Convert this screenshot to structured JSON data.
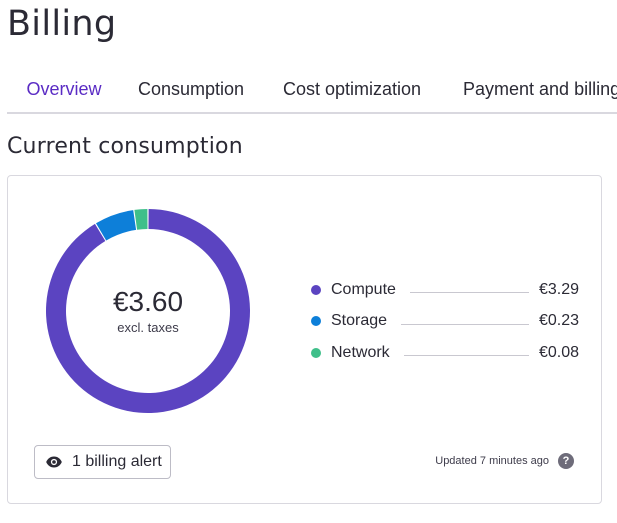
{
  "page": {
    "title": "Billing"
  },
  "tabs": [
    {
      "label": "Overview",
      "active": true
    },
    {
      "label": "Consumption",
      "active": false
    },
    {
      "label": "Cost optimization",
      "active": false
    },
    {
      "label": "Payment and billing",
      "active": false
    }
  ],
  "section": {
    "title": "Current consumption"
  },
  "summary": {
    "total": "€3.60",
    "caption": "excl. taxes"
  },
  "breakdown": [
    {
      "label": "Compute",
      "value": "€3.29",
      "amount": 3.29,
      "color": "#5b44c1"
    },
    {
      "label": "Storage",
      "value": "€0.23",
      "amount": 0.23,
      "color": "#0d7fd9"
    },
    {
      "label": "Network",
      "value": "€0.08",
      "amount": 0.08,
      "color": "#3fbf8a"
    }
  ],
  "alerts": {
    "label": "1 billing alert",
    "icon": "eye-icon"
  },
  "status": {
    "updated": "Updated 7 minutes ago",
    "help_icon": "question-circle-icon"
  }
}
